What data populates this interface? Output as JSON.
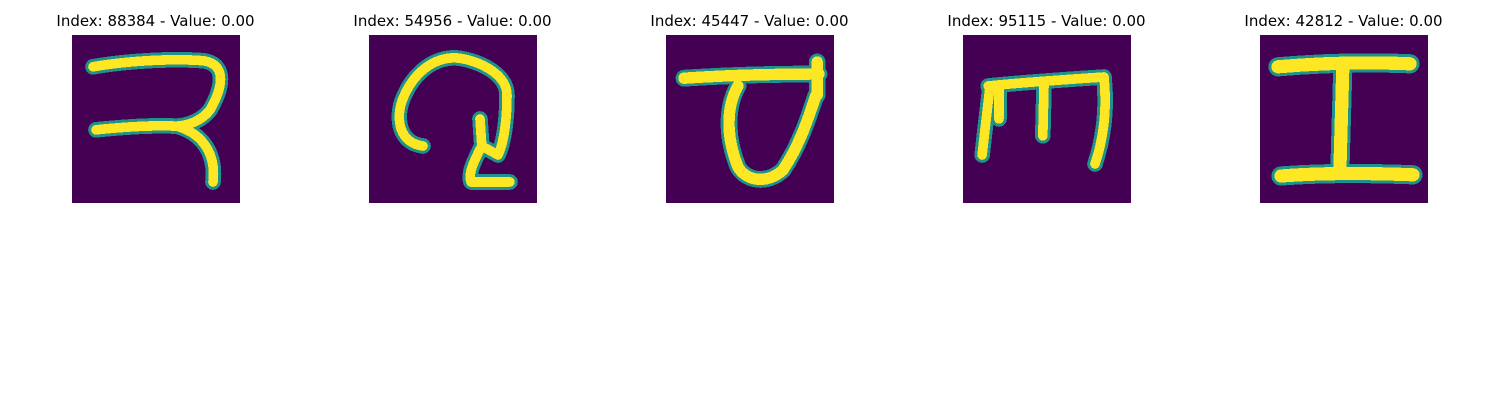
{
  "colors": {
    "background": "#440154",
    "foreground": "#fde725",
    "edge": "#5ec962",
    "edge_outer": "#21918c"
  },
  "panels": [
    {
      "title": "Index: 88384 - Value: 0.00",
      "glyph": "devanagari-ra-like-glyph"
    },
    {
      "title": "Index: 54956 - Value: 0.00",
      "glyph": "devanagari-stroke-glyph"
    },
    {
      "title": "Index: 45447 - Value: 0.00",
      "glyph": "devanagari-va-like-glyph"
    },
    {
      "title": "Index: 95115 - Value: 0.00",
      "glyph": "devanagari-ma-like-glyph"
    },
    {
      "title": "Index: 42812 - Value: 0.00",
      "glyph": "devanagari-i-beam-glyph"
    }
  ]
}
